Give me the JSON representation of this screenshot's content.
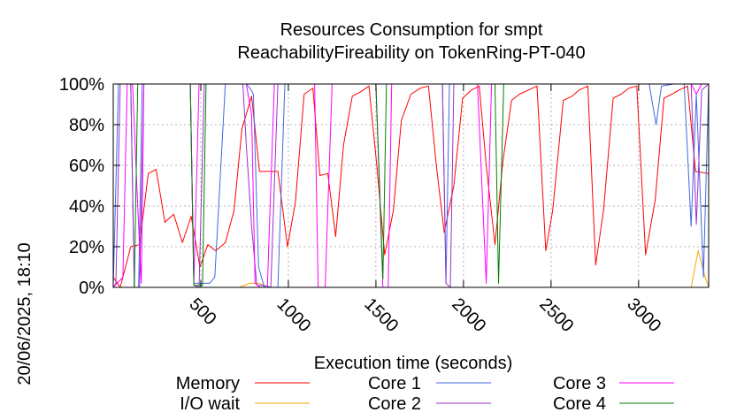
{
  "chart_data": {
    "type": "line",
    "title_line1": "Resources Consumption for smpt",
    "title_line2": "ReachabilityFireability on TokenRing-PT-040",
    "xlabel": "Execution time (seconds)",
    "side_label": "20/06/2025, 18:10",
    "xlim": [
      0,
      3400
    ],
    "ylim": [
      0,
      100
    ],
    "x_ticks": [
      500,
      1000,
      1500,
      2000,
      2500,
      3000
    ],
    "x_tick_labels": [
      "500",
      "1000",
      "1500",
      "2000",
      "2500",
      "3000"
    ],
    "y_ticks": [
      0,
      20,
      40,
      60,
      80,
      100
    ],
    "y_tick_labels": [
      "0%",
      "20%",
      "40%",
      "60%",
      "80%",
      "100%"
    ],
    "grid": true,
    "legend_position": "bottom",
    "series": [
      {
        "name": "Memory",
        "color": "#ff0000",
        "points": [
          [
            0,
            5
          ],
          [
            40,
            0
          ],
          [
            100,
            20
          ],
          [
            150,
            21
          ],
          [
            200,
            56
          ],
          [
            245,
            58
          ],
          [
            295,
            32
          ],
          [
            345,
            36
          ],
          [
            395,
            22
          ],
          [
            445,
            35
          ],
          [
            495,
            10
          ],
          [
            540,
            21
          ],
          [
            585,
            18
          ],
          [
            640,
            22
          ],
          [
            690,
            38
          ],
          [
            735,
            78
          ],
          [
            790,
            94
          ],
          [
            835,
            57
          ],
          [
            875,
            57
          ],
          [
            940,
            57
          ],
          [
            995,
            20
          ],
          [
            1040,
            42
          ],
          [
            1090,
            95
          ],
          [
            1140,
            98
          ],
          [
            1180,
            55
          ],
          [
            1225,
            56
          ],
          [
            1270,
            25
          ],
          [
            1315,
            70
          ],
          [
            1365,
            94
          ],
          [
            1410,
            96
          ],
          [
            1460,
            99
          ],
          [
            1505,
            60
          ],
          [
            1550,
            16
          ],
          [
            1600,
            38
          ],
          [
            1645,
            82
          ],
          [
            1700,
            95
          ],
          [
            1755,
            98
          ],
          [
            1800,
            99
          ],
          [
            1845,
            60
          ],
          [
            1890,
            27
          ],
          [
            1945,
            50
          ],
          [
            1995,
            93
          ],
          [
            2045,
            97
          ],
          [
            2090,
            99
          ],
          [
            2130,
            60
          ],
          [
            2180,
            21
          ],
          [
            2225,
            62
          ],
          [
            2275,
            92
          ],
          [
            2320,
            95
          ],
          [
            2370,
            97
          ],
          [
            2420,
            99
          ],
          [
            2470,
            18
          ],
          [
            2510,
            38
          ],
          [
            2570,
            92
          ],
          [
            2620,
            94
          ],
          [
            2660,
            97
          ],
          [
            2710,
            99
          ],
          [
            2755,
            11
          ],
          [
            2800,
            38
          ],
          [
            2855,
            93
          ],
          [
            2900,
            95
          ],
          [
            2945,
            98
          ],
          [
            2990,
            99
          ],
          [
            3040,
            16
          ],
          [
            3095,
            43
          ],
          [
            3145,
            93
          ],
          [
            3190,
            95
          ],
          [
            3230,
            97
          ],
          [
            3280,
            99
          ],
          [
            3325,
            57
          ],
          [
            3400,
            56
          ]
        ]
      },
      {
        "name": "I/O wait",
        "color": "#ffa500",
        "points": [
          [
            0,
            0
          ],
          [
            720,
            0
          ],
          [
            780,
            2
          ],
          [
            830,
            2
          ],
          [
            860,
            1
          ],
          [
            900,
            0
          ],
          [
            3300,
            0
          ],
          [
            3340,
            18
          ],
          [
            3380,
            5
          ],
          [
            3400,
            0
          ]
        ]
      },
      {
        "name": "Core 1",
        "color": "#4169e1",
        "points": [
          [
            0,
            0
          ],
          [
            30,
            100
          ],
          [
            100,
            100
          ],
          [
            120,
            0
          ],
          [
            145,
            0
          ],
          [
            165,
            100
          ],
          [
            440,
            100
          ],
          [
            460,
            2
          ],
          [
            550,
            2
          ],
          [
            580,
            5
          ],
          [
            640,
            100
          ],
          [
            700,
            100
          ],
          [
            760,
            100
          ],
          [
            780,
            98
          ],
          [
            800,
            95
          ],
          [
            830,
            10
          ],
          [
            860,
            1
          ],
          [
            900,
            0
          ],
          [
            940,
            0
          ],
          [
            980,
            100
          ],
          [
            1880,
            100
          ],
          [
            1900,
            2
          ],
          [
            1920,
            100
          ],
          [
            3060,
            100
          ],
          [
            3100,
            80
          ],
          [
            3130,
            99
          ],
          [
            3200,
            100
          ],
          [
            3260,
            100
          ],
          [
            3300,
            30
          ],
          [
            3330,
            95
          ],
          [
            3370,
            5
          ],
          [
            3400,
            100
          ]
        ]
      },
      {
        "name": "Core 2",
        "color": "#9932cc",
        "points": [
          [
            0,
            0
          ],
          [
            15,
            2
          ],
          [
            40,
            100
          ],
          [
            100,
            100
          ],
          [
            120,
            0
          ],
          [
            150,
            0
          ],
          [
            175,
            100
          ],
          [
            440,
            100
          ],
          [
            460,
            1
          ],
          [
            490,
            0
          ],
          [
            520,
            100
          ],
          [
            720,
            100
          ],
          [
            740,
            100
          ],
          [
            760,
            70
          ],
          [
            790,
            30
          ],
          [
            820,
            1
          ],
          [
            850,
            1
          ],
          [
            870,
            0
          ],
          [
            900,
            0
          ],
          [
            940,
            100
          ],
          [
            1500,
            100
          ],
          [
            1880,
            100
          ],
          [
            1900,
            2
          ],
          [
            1925,
            0
          ],
          [
            1945,
            100
          ],
          [
            3060,
            100
          ],
          [
            3100,
            100
          ],
          [
            3300,
            100
          ],
          [
            3330,
            31
          ],
          [
            3360,
            97
          ],
          [
            3400,
            100
          ]
        ]
      },
      {
        "name": "Core 3",
        "color": "#ff00ff",
        "points": [
          [
            0,
            0
          ],
          [
            55,
            5
          ],
          [
            80,
            100
          ],
          [
            110,
            100
          ],
          [
            140,
            40
          ],
          [
            160,
            2
          ],
          [
            175,
            100
          ],
          [
            440,
            100
          ],
          [
            460,
            2
          ],
          [
            490,
            100
          ],
          [
            530,
            100
          ],
          [
            560,
            100
          ],
          [
            600,
            100
          ],
          [
            640,
            100
          ],
          [
            680,
            100
          ],
          [
            720,
            100
          ],
          [
            760,
            100
          ],
          [
            790,
            85
          ],
          [
            810,
            2
          ],
          [
            840,
            0
          ],
          [
            880,
            0
          ],
          [
            920,
            100
          ],
          [
            1050,
            100
          ],
          [
            1150,
            100
          ],
          [
            1170,
            0
          ],
          [
            1210,
            0
          ],
          [
            1250,
            100
          ],
          [
            1370,
            100
          ],
          [
            1480,
            100
          ],
          [
            1500,
            100
          ],
          [
            1540,
            0
          ],
          [
            1570,
            0
          ],
          [
            1590,
            100
          ],
          [
            1800,
            100
          ],
          [
            1900,
            100
          ],
          [
            2000,
            100
          ],
          [
            2050,
            100
          ],
          [
            2080,
            100
          ],
          [
            2130,
            2
          ],
          [
            2160,
            100
          ],
          [
            3300,
            100
          ],
          [
            3330,
            95
          ],
          [
            3360,
            100
          ],
          [
            3400,
            100
          ]
        ]
      },
      {
        "name": "Core 4",
        "color": "#008000",
        "points": [
          [
            0,
            0
          ],
          [
            95,
            0
          ],
          [
            120,
            0
          ],
          [
            140,
            100
          ],
          [
            440,
            100
          ],
          [
            460,
            1
          ],
          [
            510,
            1
          ],
          [
            530,
            100
          ],
          [
            1480,
            100
          ],
          [
            1500,
            100
          ],
          [
            1540,
            4
          ],
          [
            1560,
            100
          ],
          [
            2180,
            100
          ],
          [
            2200,
            2
          ],
          [
            2230,
            100
          ],
          [
            3400,
            100
          ]
        ]
      }
    ]
  }
}
